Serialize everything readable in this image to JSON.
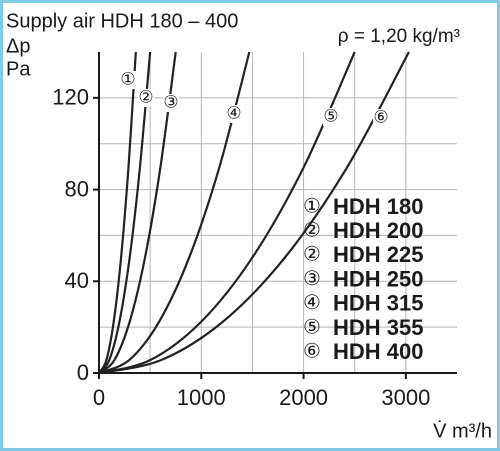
{
  "chart_data": {
    "type": "line",
    "title": "Supply air HDH 180 – 400",
    "subtitle": "ρ = 1,20 kg/m³",
    "y_label": [
      "Δp",
      "Pa"
    ],
    "x_label": "V̇ m³/h",
    "xlim": [
      0,
      3500
    ],
    "ylim": [
      0,
      140
    ],
    "xticks": [
      0,
      1000,
      2000,
      3000
    ],
    "yticks": [
      0,
      40,
      80,
      120
    ],
    "xgrid": [
      500,
      1000,
      1500,
      2000,
      2500,
      3000
    ],
    "ygrid": [
      20,
      40,
      60,
      80,
      100,
      120
    ],
    "grid": true,
    "series": [
      {
        "name": "①",
        "color": "#222222",
        "x": [
          0,
          72,
          144,
          216,
          288,
          360
        ],
        "values": [
          0,
          5.6,
          22.4,
          50.4,
          89.6,
          140
        ]
      },
      {
        "name": "②",
        "color": "#222222",
        "x": [
          0,
          100,
          200,
          300,
          400,
          500
        ],
        "values": [
          0,
          5.6,
          22.4,
          50.4,
          89.6,
          140
        ]
      },
      {
        "name": "③",
        "color": "#222222",
        "x": [
          0,
          150,
          300,
          450,
          600,
          750
        ],
        "values": [
          0,
          5.6,
          22.4,
          50.4,
          89.6,
          140
        ]
      },
      {
        "name": "④",
        "color": "#222222",
        "x": [
          0,
          294,
          588,
          882,
          1176,
          1470
        ],
        "values": [
          0,
          5.6,
          22.4,
          50.4,
          89.6,
          140
        ]
      },
      {
        "name": "⑤",
        "color": "#222222",
        "x": [
          0,
          500,
          1000,
          1500,
          2000,
          2500
        ],
        "values": [
          0,
          5.6,
          22.4,
          50.4,
          89.6,
          140
        ]
      },
      {
        "name": "⑥",
        "color": "#222222",
        "x": [
          0,
          606,
          1212,
          1818,
          2424,
          3030
        ],
        "values": [
          0,
          5.6,
          22.4,
          50.4,
          89.6,
          140
        ]
      }
    ],
    "legend": [
      {
        "marker": "①",
        "name": "HDH 180"
      },
      {
        "marker": "②",
        "name": "HDH 200"
      },
      {
        "marker": "②",
        "name": "HDH 225"
      },
      {
        "marker": "③",
        "name": "HDH 250"
      },
      {
        "marker": "④",
        "name": "HDH 315"
      },
      {
        "marker": "⑤",
        "name": "HDH 355"
      },
      {
        "marker": "⑥",
        "name": "HDH 400"
      }
    ]
  }
}
